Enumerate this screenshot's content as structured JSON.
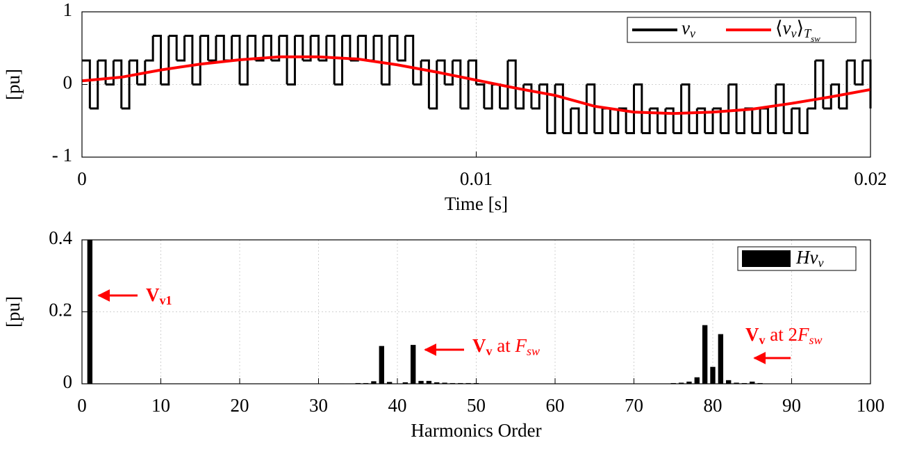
{
  "chart_data": [
    {
      "type": "line",
      "ylabel": "[pu]",
      "xlabel": "Time [s]",
      "xlim": [
        0,
        0.02
      ],
      "xticks": [
        0,
        0.01,
        0.02
      ],
      "ylim": [
        -1,
        1
      ],
      "yticks": [
        {
          "value": -1,
          "label": "- 1"
        },
        0,
        1
      ],
      "grid": true,
      "legend": "upper right",
      "series": [
        {
          "name": [
            [
              "v",
              "i"
            ],
            [
              "v",
              "is"
            ]
          ],
          "color": "#000000",
          "step": true,
          "x": [
            0,
            0.0002,
            0.0004,
            0.0006,
            0.0008,
            0.001,
            0.0012,
            0.0014,
            0.0016,
            0.0018,
            0.002,
            0.0022,
            0.0024,
            0.0026,
            0.0028,
            0.003,
            0.0032,
            0.0034,
            0.0036,
            0.0038,
            0.004,
            0.0042,
            0.0044,
            0.0046,
            0.0048,
            0.005,
            0.0052,
            0.0054,
            0.0056,
            0.0058,
            0.006,
            0.0062,
            0.0064,
            0.0066,
            0.0068,
            0.007,
            0.0072,
            0.0074,
            0.0076,
            0.0078,
            0.008,
            0.0082,
            0.0084,
            0.0086,
            0.0088,
            0.009,
            0.0092,
            0.0094,
            0.0096,
            0.0098,
            0.01,
            0.0102,
            0.0104,
            0.0106,
            0.0108,
            0.011,
            0.0112,
            0.0114,
            0.0116,
            0.0118,
            0.012,
            0.0122,
            0.0124,
            0.0126,
            0.0128,
            0.013,
            0.0132,
            0.0134,
            0.0136,
            0.0138,
            0.014,
            0.0142,
            0.0144,
            0.0146,
            0.0148,
            0.015,
            0.0152,
            0.0154,
            0.0156,
            0.0158,
            0.016,
            0.0162,
            0.0164,
            0.0166,
            0.0168,
            0.017,
            0.0172,
            0.0174,
            0.0176,
            0.0178,
            0.018,
            0.0182,
            0.0184,
            0.0186,
            0.0188,
            0.019,
            0.0192,
            0.0194,
            0.0196,
            0.0198,
            0.02
          ],
          "values": [
            0.33,
            -0.33,
            0.33,
            0,
            0.33,
            -0.33,
            0.33,
            0,
            0.33,
            0.67,
            0,
            0.67,
            0.33,
            0.67,
            0,
            0.67,
            0.33,
            0.67,
            0.33,
            0.67,
            0,
            0.67,
            0.33,
            0.67,
            0.33,
            0.67,
            0,
            0.67,
            0.33,
            0.67,
            0.33,
            0.67,
            0,
            0.67,
            0.33,
            0.67,
            0.33,
            0.67,
            0,
            0.67,
            0.33,
            0.67,
            0,
            0.33,
            -0.33,
            0.33,
            0,
            0.33,
            -0.33,
            0.33,
            0,
            -0.33,
            0,
            -0.33,
            0.33,
            -0.33,
            0,
            -0.33,
            0,
            -0.67,
            0,
            -0.67,
            -0.33,
            -0.67,
            0,
            -0.67,
            -0.33,
            -0.67,
            -0.33,
            -0.67,
            0,
            -0.67,
            -0.33,
            -0.67,
            -0.33,
            -0.67,
            0,
            -0.67,
            -0.33,
            -0.67,
            -0.33,
            -0.67,
            0,
            -0.67,
            -0.33,
            -0.67,
            -0.33,
            -0.67,
            0,
            -0.67,
            -0.33,
            -0.67,
            -0.33,
            0.33,
            -0.33,
            0,
            -0.33,
            0.33,
            0,
            0.33,
            -0.33
          ]
        },
        {
          "name": [
            [
              "⟨",
              ""
            ],
            [
              "v",
              "i"
            ],
            [
              "v",
              "is"
            ],
            [
              "⟩",
              ""
            ],
            [
              "T",
              "is"
            ],
            [
              "sw",
              "iss"
            ]
          ],
          "color": "#ff0000",
          "x": [
            0,
            0.001,
            0.002,
            0.003,
            0.004,
            0.005,
            0.006,
            0.007,
            0.008,
            0.009,
            0.01,
            0.011,
            0.012,
            0.013,
            0.014,
            0.015,
            0.016,
            0.017,
            0.018,
            0.019,
            0.02
          ],
          "values": [
            0.05,
            0.1,
            0.2,
            0.28,
            0.34,
            0.38,
            0.38,
            0.35,
            0.27,
            0.17,
            0.06,
            -0.05,
            -0.15,
            -0.3,
            -0.38,
            -0.4,
            -0.38,
            -0.34,
            -0.26,
            -0.17,
            -0.07
          ]
        }
      ]
    },
    {
      "type": "bar",
      "ylabel": "[pu]",
      "xlabel": "Harmonics Order",
      "xlim": [
        0,
        100
      ],
      "xticks": [
        0,
        10,
        20,
        30,
        40,
        50,
        60,
        70,
        80,
        90,
        100
      ],
      "ylim": [
        0,
        0.4
      ],
      "yticks": [
        0,
        0.2,
        0.4
      ],
      "grid": true,
      "legend": "upper right",
      "series": [
        {
          "name": [
            [
              "Hv",
              "i"
            ],
            [
              "v",
              "is"
            ]
          ],
          "color": "#000000",
          "x": [
            1,
            33,
            35,
            36,
            37,
            38,
            39,
            41,
            42,
            43,
            44,
            45,
            46,
            47,
            48,
            49,
            50,
            75,
            76,
            77,
            78,
            79,
            80,
            81,
            82,
            83,
            84,
            85,
            86,
            87
          ],
          "values": [
            0.4,
            0.001,
            0.002,
            0.002,
            0.007,
            0.105,
            0.005,
            0.004,
            0.108,
            0.008,
            0.008,
            0.004,
            0.003,
            0.002,
            0.002,
            0.002,
            0.002,
            0.002,
            0.003,
            0.006,
            0.018,
            0.163,
            0.047,
            0.138,
            0.01,
            0.003,
            0.002,
            0.006,
            0.002,
            0.001
          ]
        }
      ],
      "annotations": [
        {
          "text": [
            [
              "V",
              "b"
            ],
            [
              "v1",
              "bs"
            ]
          ]
        },
        {
          "text": [
            [
              "V",
              "b"
            ],
            [
              "v",
              "bs"
            ],
            [
              " at ",
              ""
            ],
            [
              "F",
              "i"
            ],
            [
              "sw",
              "is"
            ]
          ]
        },
        {
          "text": [
            [
              "V",
              "b"
            ],
            [
              "v",
              "bs"
            ],
            [
              " at 2",
              ""
            ],
            [
              "F",
              "i"
            ],
            [
              "sw",
              "is"
            ]
          ]
        }
      ]
    }
  ]
}
